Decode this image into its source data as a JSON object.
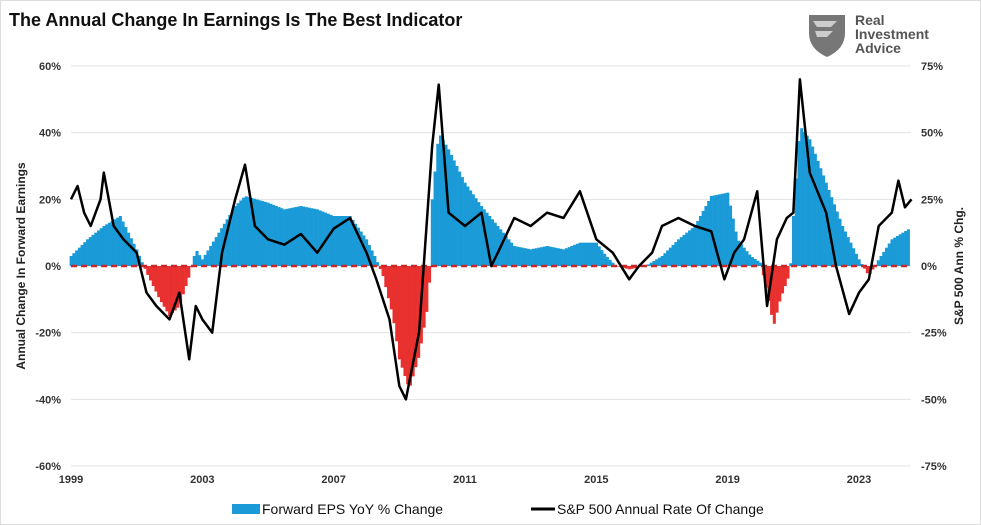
{
  "chart_data": {
    "type": "bar+line",
    "title": "The Annual Change In Earnings Is The Best Indicator",
    "logo_text": [
      "Real",
      "Investment",
      "Advice"
    ],
    "ylabel_left": "Annual Change In Forward Earnings",
    "ylabel_right": "S&P 500  Ann % Chg.",
    "ylim_left": [
      -60,
      60
    ],
    "ylim_right": [
      -75,
      75
    ],
    "yticks_left": [
      "60%",
      "40%",
      "20%",
      "0%",
      "-20%",
      "-40%",
      "-60%"
    ],
    "yticks_right": [
      "75%",
      "50%",
      "25%",
      "0%",
      "-25%",
      "-50%",
      "-75%"
    ],
    "xticks": [
      "1999",
      "2003",
      "2007",
      "2011",
      "2015",
      "2019",
      "2023"
    ],
    "legend_position": "bottom",
    "colors": {
      "positive": "#1a9bd7",
      "negative": "#e8312f",
      "line": "#000000",
      "zero_line": "#c8282a"
    },
    "series": [
      {
        "name": "Forward EPS YoY % Change",
        "type": "bar",
        "axis": "left",
        "x": [
          1999.0,
          1999.5,
          2000.0,
          2000.5,
          2001.0,
          2001.3,
          2001.7,
          2002.0,
          2002.3,
          2002.6,
          2002.8,
          2003.0,
          2003.5,
          2004.0,
          2004.3,
          2005.0,
          2005.5,
          2006.0,
          2006.5,
          2007.0,
          2007.5,
          2008.0,
          2008.3,
          2008.5,
          2008.8,
          2009.0,
          2009.3,
          2009.6,
          2009.9,
          2010.0,
          2010.2,
          2010.5,
          2011.0,
          2011.5,
          2012.0,
          2012.5,
          2013.0,
          2013.5,
          2014.0,
          2014.5,
          2015.0,
          2015.3,
          2015.6,
          2016.0,
          2016.5,
          2017.0,
          2017.5,
          2018.0,
          2018.5,
          2019.0,
          2019.3,
          2019.7,
          2020.0,
          2020.2,
          2020.4,
          2020.6,
          2020.9,
          2021.0,
          2021.2,
          2021.5,
          2022.0,
          2022.5,
          2023.0,
          2023.3,
          2023.6,
          2024.0,
          2024.5
        ],
        "values": [
          3,
          8,
          12,
          15,
          5,
          -2,
          -10,
          -15,
          -12,
          -3,
          5,
          2,
          10,
          18,
          21,
          19,
          17,
          18,
          17,
          15,
          15,
          8,
          2,
          -3,
          -15,
          -28,
          -37,
          -27,
          -10,
          20,
          40,
          35,
          25,
          18,
          12,
          6,
          5,
          6,
          5,
          7,
          7,
          3,
          0,
          -1,
          0,
          3,
          8,
          12,
          21,
          22,
          8,
          3,
          1,
          -8,
          -18,
          -10,
          -2,
          15,
          42,
          38,
          25,
          12,
          2,
          -3,
          2,
          8,
          11
        ]
      },
      {
        "name": "S&P 500 Annual Rate Of Change",
        "type": "line",
        "axis": "right",
        "x": [
          1999.0,
          1999.2,
          1999.4,
          1999.6,
          1999.9,
          2000.0,
          2000.3,
          2000.6,
          2001.0,
          2001.3,
          2001.6,
          2002.0,
          2002.3,
          2002.6,
          2002.8,
          2003.0,
          2003.3,
          2003.6,
          2004.0,
          2004.3,
          2004.6,
          2005.0,
          2005.5,
          2006.0,
          2006.5,
          2007.0,
          2007.5,
          2008.0,
          2008.3,
          2008.7,
          2009.0,
          2009.2,
          2009.6,
          2010.0,
          2010.2,
          2010.5,
          2011.0,
          2011.5,
          2011.8,
          2012.0,
          2012.5,
          2013.0,
          2013.5,
          2014.0,
          2014.5,
          2015.0,
          2015.5,
          2016.0,
          2016.3,
          2016.7,
          2017.0,
          2017.5,
          2018.0,
          2018.5,
          2018.9,
          2019.2,
          2019.5,
          2019.9,
          2020.2,
          2020.5,
          2020.8,
          2021.0,
          2021.2,
          2021.5,
          2022.0,
          2022.3,
          2022.7,
          2023.0,
          2023.3,
          2023.6,
          2024.0,
          2024.2,
          2024.4,
          2024.6
        ],
        "values": [
          25,
          30,
          20,
          15,
          25,
          35,
          15,
          10,
          5,
          -10,
          -15,
          -20,
          -10,
          -35,
          -15,
          -20,
          -25,
          5,
          25,
          38,
          15,
          10,
          8,
          12,
          5,
          14,
          18,
          5,
          -5,
          -20,
          -45,
          -50,
          -25,
          45,
          68,
          20,
          15,
          20,
          0,
          5,
          18,
          15,
          20,
          18,
          28,
          10,
          5,
          -5,
          0,
          5,
          15,
          18,
          15,
          13,
          -5,
          5,
          10,
          28,
          -15,
          10,
          18,
          20,
          70,
          35,
          20,
          0,
          -18,
          -10,
          -5,
          15,
          20,
          32,
          22,
          25
        ]
      }
    ]
  }
}
